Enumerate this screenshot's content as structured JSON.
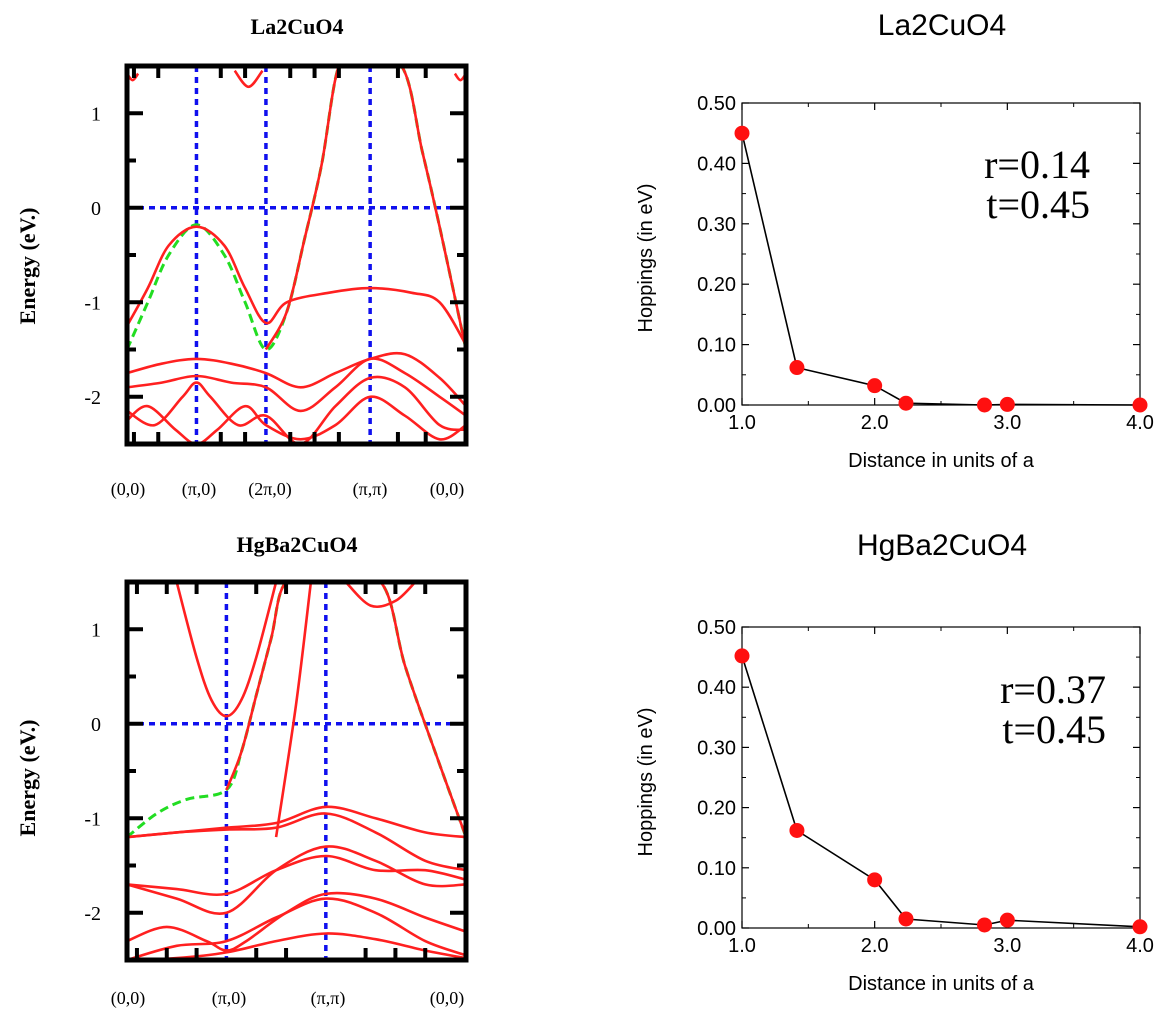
{
  "colors": {
    "band": "#ff2020",
    "fit": "#22dd22",
    "guide": "#1010ee",
    "frame": "#000000",
    "marker": "#ff1010",
    "line": "#000000"
  },
  "chart_data": [
    {
      "type": "line",
      "panel": "band-structure",
      "title": "La2CuO4",
      "xlabel": "",
      "ylabel": "Energy (eV.)",
      "ylim": [
        -2.5,
        1.5
      ],
      "yticks": [
        "1",
        "0",
        "-1",
        "-2"
      ],
      "xticks": [
        "(0,0)",
        "(π,0)",
        "(2π,0)",
        "(π,π)",
        "(0,0)"
      ],
      "k_path": [
        0,
        1,
        2,
        3.5,
        4.88
      ],
      "series": [
        {
          "kind": "band-red",
          "x": [
            0,
            0.3,
            0.6,
            1,
            1.4,
            1.7,
            2,
            2.3,
            2.9,
            3.5,
            4.1,
            4.5,
            4.88
          ],
          "y": [
            -1.25,
            -0.85,
            -0.4,
            -0.2,
            -0.4,
            -0.85,
            -1.22,
            -1.0,
            -0.9,
            -0.85,
            -0.9,
            -1.0,
            -1.45
          ]
        },
        {
          "kind": "band-green",
          "x": [
            0,
            0.3,
            0.6,
            1,
            1.4,
            1.7,
            2,
            2.3,
            2.55,
            2.8,
            3.05,
            3.35,
            3.95,
            4.25,
            4.5,
            4.88
          ],
          "y": [
            -1.5,
            -1.0,
            -0.5,
            -0.18,
            -0.5,
            -1.0,
            -1.5,
            -1.1,
            -0.35,
            0.45,
            1.5,
            1.5,
            1.5,
            0.6,
            -0.2,
            -1.5
          ]
        },
        {
          "kind": "band-red",
          "x": [
            2,
            2.3,
            2.55,
            2.8,
            3.05,
            3.35,
            3.95,
            4.25,
            4.5,
            4.88
          ],
          "y": [
            -1.5,
            -1.1,
            -0.35,
            0.45,
            1.5,
            1.5,
            1.5,
            0.6,
            -0.2,
            -1.5
          ]
        },
        {
          "kind": "band-red",
          "x": [
            0,
            0.5,
            1,
            1.5,
            2,
            2.5,
            3.0,
            3.5,
            4.0,
            4.5,
            4.88
          ],
          "y": [
            -1.75,
            -1.65,
            -1.6,
            -1.65,
            -1.75,
            -1.9,
            -1.75,
            -1.6,
            -1.55,
            -1.8,
            -2.1
          ]
        },
        {
          "kind": "band-red",
          "x": [
            0,
            0.5,
            1,
            1.5,
            2,
            2.5,
            3.0,
            3.5,
            4.0,
            4.5,
            4.88
          ],
          "y": [
            -1.9,
            -1.85,
            -1.78,
            -1.85,
            -1.9,
            -2.15,
            -1.9,
            -1.6,
            -1.75,
            -2.0,
            -2.2
          ]
        },
        {
          "kind": "band-red",
          "x": [
            0,
            0.4,
            0.8,
            1,
            1.2,
            1.6,
            2,
            2.5,
            3.0,
            3.5,
            4.0,
            4.5,
            4.88
          ],
          "y": [
            -2.15,
            -2.3,
            -2.0,
            -1.85,
            -2.0,
            -2.3,
            -2.2,
            -2.5,
            -2.1,
            -1.8,
            -1.9,
            -2.3,
            -2.35
          ]
        },
        {
          "kind": "band-red",
          "x": [
            0,
            0.3,
            0.7,
            1,
            1.3,
            1.7,
            2,
            2.5,
            3.0,
            3.5,
            4.0,
            4.5,
            4.88
          ],
          "y": [
            -2.25,
            -2.1,
            -2.35,
            -2.5,
            -2.35,
            -2.1,
            -2.3,
            -2.45,
            -2.3,
            -2.0,
            -2.2,
            -2.45,
            -2.3
          ]
        },
        {
          "kind": "band-red",
          "x": [
            0,
            0.08,
            0.16
          ],
          "y": [
            1.42,
            1.35,
            1.42
          ]
        },
        {
          "kind": "band-red",
          "x": [
            1.55,
            1.75,
            1.95
          ],
          "y": [
            1.45,
            1.28,
            1.45
          ]
        },
        {
          "kind": "band-red",
          "x": [
            4.72,
            4.8,
            4.88
          ],
          "y": [
            1.42,
            1.35,
            1.42
          ]
        }
      ]
    },
    {
      "type": "line",
      "panel": "band-structure",
      "title": "HgBa2CuO4",
      "xlabel": "",
      "ylabel": "Energy (eV.)",
      "ylim": [
        -2.5,
        1.5
      ],
      "yticks": [
        "1",
        "0",
        "-1",
        "-2"
      ],
      "xticks": [
        "(0,0)",
        "(π,0)",
        "(π,π)",
        "(0,0)"
      ],
      "k_path": [
        0,
        1,
        2,
        3.41
      ],
      "series": [
        {
          "kind": "band-green",
          "x": [
            0,
            0.3,
            0.6,
            1,
            1.15,
            1.3,
            1.45,
            1.6,
            2.0,
            2.55,
            2.8,
            3.1,
            3.41
          ],
          "y": [
            -1.2,
            -0.95,
            -0.8,
            -0.7,
            -0.3,
            0.3,
            0.9,
            1.5,
            1.5,
            1.5,
            0.6,
            -0.3,
            -1.2
          ]
        },
        {
          "kind": "band-red",
          "x": [
            1,
            1.15,
            1.3,
            1.45,
            1.6,
            2.0,
            2.55,
            2.8,
            3.1,
            3.41
          ],
          "y": [
            -0.7,
            -0.3,
            0.3,
            0.9,
            1.5,
            1.5,
            1.5,
            0.6,
            -0.3,
            -1.2
          ]
        },
        {
          "kind": "band-red",
          "x": [
            0.5,
            0.7,
            0.85,
            1,
            1.15,
            1.3,
            1.5
          ],
          "y": [
            1.5,
            0.7,
            0.25,
            0.08,
            0.25,
            0.7,
            1.5
          ]
        },
        {
          "kind": "band-red",
          "x": [
            1.5,
            1.7,
            1.85
          ],
          "y": [
            -1.2,
            0.2,
            1.5
          ]
        },
        {
          "kind": "band-red",
          "x": [
            2.2,
            2.45,
            2.7,
            2.9
          ],
          "y": [
            1.5,
            1.25,
            1.3,
            1.5
          ]
        },
        {
          "kind": "band-red",
          "x": [
            0,
            0.5,
            1,
            1.5,
            2,
            2.5,
            3.0,
            3.41
          ],
          "y": [
            -1.2,
            -1.15,
            -1.1,
            -1.05,
            -0.88,
            -1.0,
            -1.15,
            -1.2
          ]
        },
        {
          "kind": "band-red",
          "x": [
            0,
            0.5,
            1,
            1.5,
            2,
            2.5,
            3.0,
            3.41
          ],
          "y": [
            -1.2,
            -1.15,
            -1.12,
            -1.1,
            -0.95,
            -1.15,
            -1.45,
            -1.55
          ]
        },
        {
          "kind": "band-red",
          "x": [
            0,
            0.5,
            1,
            1.5,
            2,
            2.5,
            3.0,
            3.41
          ],
          "y": [
            -1.7,
            -1.85,
            -2.0,
            -1.55,
            -1.3,
            -1.45,
            -1.7,
            -1.7
          ]
        },
        {
          "kind": "band-red",
          "x": [
            0,
            0.5,
            1,
            1.5,
            2,
            2.5,
            3.0,
            3.41
          ],
          "y": [
            -1.7,
            -1.75,
            -1.8,
            -1.55,
            -1.4,
            -1.55,
            -1.55,
            -1.65
          ]
        },
        {
          "kind": "band-red",
          "x": [
            0,
            0.4,
            0.8,
            1.0,
            1.2,
            1.6,
            2,
            2.5,
            3.0,
            3.41
          ],
          "y": [
            -2.3,
            -2.15,
            -2.3,
            -2.4,
            -2.3,
            -2.0,
            -1.8,
            -1.85,
            -2.05,
            -2.2
          ]
        },
        {
          "kind": "band-red",
          "x": [
            0,
            0.5,
            1,
            1.5,
            2,
            2.5,
            3.0,
            3.41
          ],
          "y": [
            -2.5,
            -2.35,
            -2.3,
            -2.05,
            -1.85,
            -2.0,
            -2.3,
            -2.45
          ]
        },
        {
          "kind": "band-red",
          "x": [
            0,
            0.5,
            1,
            1.5,
            2,
            2.5,
            3.0,
            3.41
          ],
          "y": [
            -2.5,
            -2.48,
            -2.42,
            -2.3,
            -2.22,
            -2.28,
            -2.4,
            -2.48
          ]
        }
      ]
    },
    {
      "type": "scatter",
      "panel": "hoppings",
      "title": "La2CuO4",
      "xlabel": "Distance in units of a",
      "ylabel": "Hoppings (in eV)",
      "xlim": [
        1.0,
        4.0
      ],
      "ylim": [
        0.0,
        0.5
      ],
      "xticks": [
        "1.0",
        "2.0",
        "3.0",
        "4.0"
      ],
      "yticks": [
        "0.00",
        "0.10",
        "0.20",
        "0.30",
        "0.40",
        "0.50"
      ],
      "annotation": [
        "r=0.14",
        "t=0.45"
      ],
      "x": [
        1.0,
        1.414,
        2.0,
        2.236,
        2.828,
        3.0,
        4.0
      ],
      "y": [
        0.45,
        0.062,
        0.032,
        0.003,
        0.0,
        0.001,
        0.0
      ]
    },
    {
      "type": "scatter",
      "panel": "hoppings",
      "title": "HgBa2CuO4",
      "xlabel": "Distance in units of a",
      "ylabel": "Hoppings (in eV)",
      "xlim": [
        1.0,
        4.0
      ],
      "ylim": [
        0.0,
        0.5
      ],
      "xticks": [
        "1.0",
        "2.0",
        "3.0",
        "4.0"
      ],
      "yticks": [
        "0.00",
        "0.10",
        "0.20",
        "0.30",
        "0.40",
        "0.50"
      ],
      "annotation": [
        "r=0.37",
        "t=0.45"
      ],
      "x": [
        1.0,
        1.414,
        2.0,
        2.236,
        2.828,
        3.0,
        4.0
      ],
      "y": [
        0.452,
        0.162,
        0.08,
        0.015,
        0.005,
        0.013,
        0.002
      ]
    }
  ]
}
